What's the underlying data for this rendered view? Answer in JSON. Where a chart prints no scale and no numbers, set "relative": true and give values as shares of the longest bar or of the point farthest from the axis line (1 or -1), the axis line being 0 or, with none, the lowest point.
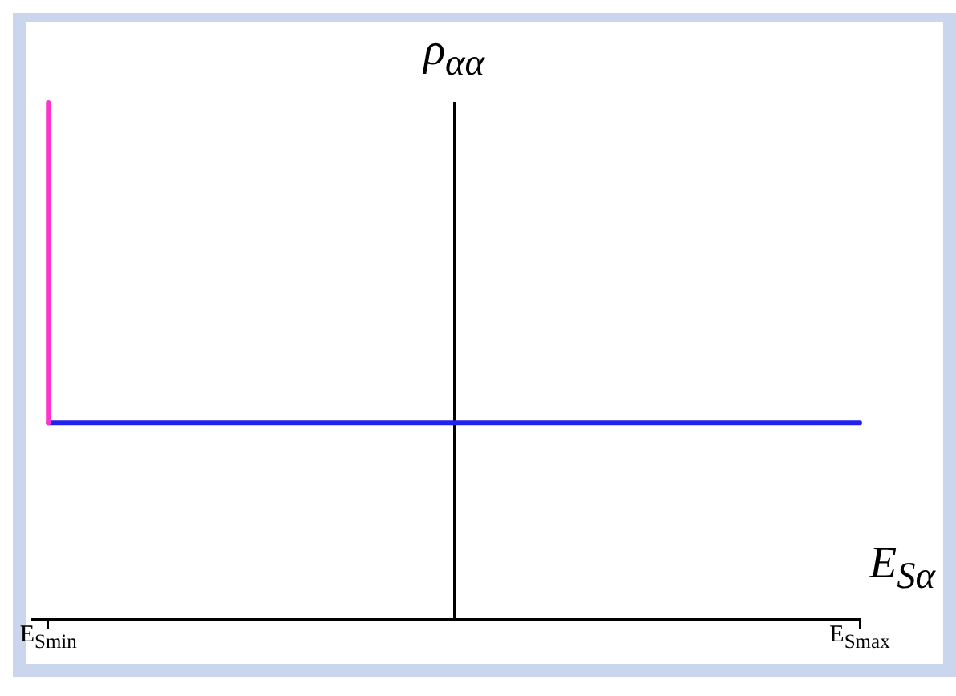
{
  "chart_data": {
    "type": "line",
    "relative": true,
    "xlabel": "E$_{Sα}$",
    "ylabel": "ρ$_{αα}$",
    "categories": [
      "E$_{Smin}$",
      "E$_{Smax}$"
    ],
    "grid": false,
    "legend": false,
    "series": [
      {
        "color": "#ff33cc",
        "x": [
          "E$_{Smin}$",
          "E$_{Smin}$"
        ],
        "values": [
          0.38,
          1
        ]
      },
      {
        "color": "#2222ee",
        "values": [
          0.38,
          0.38
        ]
      }
    ]
  }
}
